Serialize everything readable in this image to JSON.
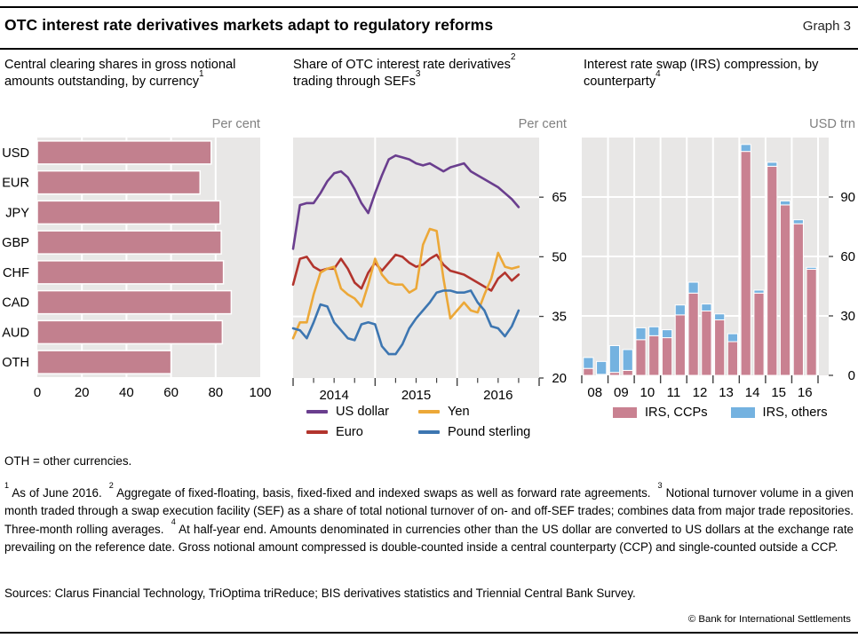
{
  "header": {
    "title": "OTC interest rate derivatives markets adapt to regulatory reforms",
    "graph_label": "Graph 3"
  },
  "colors": {
    "plot_bg": "#E8E7E6",
    "gridline": "#FFFFFF",
    "tick": "#404040",
    "unit_text": "#808080",
    "rule": "#000000"
  },
  "chart_data": [
    {
      "type": "bar",
      "orientation": "horizontal",
      "title": "Central clearing shares in gross notional amounts outstanding, by currency^1",
      "unit_label": "Per cent",
      "categories": [
        "USD",
        "EUR",
        "JPY",
        "GBP",
        "CHF",
        "CAD",
        "AUD",
        "OTH"
      ],
      "values": [
        78,
        73,
        82,
        82.5,
        83.5,
        87,
        83,
        60
      ],
      "xlim": [
        0,
        100
      ],
      "xticks": [
        0,
        20,
        40,
        60,
        80,
        100
      ],
      "bar_color": "#C2808E",
      "grid": "vertical white lines on grey background"
    },
    {
      "type": "line",
      "title": "Share of OTC interest rate derivatives^2 trading through SEFs^3",
      "unit_label": "Per cent",
      "x_start": "2014-01",
      "x_end": "2016-10",
      "x_freq": "monthly",
      "x_year_labels": [
        "2014",
        "2015",
        "2016"
      ],
      "ylim": [
        20,
        80
      ],
      "yticks": [
        20,
        35,
        50,
        65
      ],
      "legend_position": "below",
      "grid": "horizontal white lines on grey background",
      "series": [
        {
          "name": "US dollar",
          "color": "#6A3E8E",
          "values": [
            52,
            63,
            63.5,
            63.5,
            66,
            69,
            71,
            71.5,
            70,
            67,
            63.5,
            61,
            66,
            70.5,
            74.5,
            75.5,
            75,
            74.5,
            73.5,
            73,
            73.5,
            72.5,
            71.5,
            72.5,
            73,
            73.5,
            71.5,
            70.5,
            69.5,
            68.5,
            67.5,
            66,
            64.5,
            62.5
          ]
        },
        {
          "name": "Euro",
          "color": "#B2342D",
          "values": [
            43,
            49.5,
            50,
            47.5,
            46.5,
            47,
            47,
            49.5,
            47,
            43.5,
            42,
            46,
            48.5,
            46.5,
            48.5,
            50.5,
            50,
            48.5,
            47.5,
            48,
            49.5,
            50.5,
            48,
            46.5,
            46,
            45.5,
            44.5,
            43.5,
            42.5,
            41.5,
            44.5,
            46,
            44,
            45.5
          ]
        },
        {
          "name": "Yen",
          "color": "#ECA838",
          "values": [
            29.5,
            33.5,
            33.5,
            40.5,
            46,
            47,
            47.5,
            42,
            40.5,
            39.5,
            37.5,
            43,
            49.5,
            45.5,
            43.5,
            43,
            43,
            41,
            42,
            53,
            57,
            56.5,
            44.5,
            34.5,
            36.5,
            38.5,
            36.5,
            36,
            40.5,
            44.5,
            51,
            47.5,
            47,
            47.5
          ]
        },
        {
          "name": "Pound sterling",
          "color": "#3D76B1",
          "values": [
            32,
            31.5,
            29.5,
            33.5,
            38,
            37.5,
            33.5,
            31.5,
            29.5,
            29,
            33,
            33.5,
            33,
            27.5,
            25.5,
            25.5,
            28,
            32,
            34.5,
            36.5,
            38.5,
            41,
            41.5,
            41.5,
            41,
            41,
            41.5,
            38.5,
            36.5,
            32.5,
            32,
            30,
            32.5,
            36.5
          ]
        }
      ]
    },
    {
      "type": "stacked-bar",
      "title": "Interest rate swap (IRS) compression, by counterparty^4",
      "unit_label": "USD trn",
      "categories": [
        "2008 H1",
        "2008 H2",
        "2009 H1",
        "2009 H2",
        "2010 H1",
        "2010 H2",
        "2011 H1",
        "2011 H2",
        "2012 H1",
        "2012 H2",
        "2013 H1",
        "2013 H2",
        "2014 H1",
        "2014 H2",
        "2015 H1",
        "2015 H2",
        "2016 H1",
        "2016 H2"
      ],
      "x_tick_labels": [
        "08",
        "09",
        "10",
        "11",
        "12",
        "13",
        "14",
        "15",
        "16"
      ],
      "ylim": [
        0,
        120
      ],
      "yticks": [
        0,
        30,
        60,
        90
      ],
      "legend_position": "below",
      "grid": "horizontal and vertical white lines on grey background",
      "series": [
        {
          "name": "IRS, CCPs",
          "color": "#C98191",
          "values": [
            3.5,
            0.5,
            1.5,
            2.5,
            18,
            20,
            19,
            30.5,
            41.5,
            32.5,
            28,
            17,
            113,
            41.5,
            105.5,
            86,
            76.5,
            53.5
          ]
        },
        {
          "name": "IRS, others",
          "color": "#74B2E0",
          "values": [
            5.5,
            6.5,
            13.5,
            10.5,
            6,
            4.5,
            4,
            5,
            5.5,
            3.5,
            3,
            4,
            3.5,
            1.5,
            2,
            2,
            2,
            1
          ]
        }
      ]
    }
  ],
  "footnotes": {
    "oth": "OTH = other currencies.",
    "body": "^1 As of June 2016.  ^2 Aggregate of fixed-floating, basis, fixed-fixed and indexed swaps as well as forward rate agreements.  ^3 Notional turnover volume in a given month traded through a swap execution facility (SEF) as a share of total notional turnover of on- and off-SEF trades; combines data from major trade repositories. Three-month rolling averages.  ^4 At half-year end. Amounts denominated in currencies other than the US dollar are converted to US dollars at the exchange rate prevailing on the reference date. Gross notional amount compressed is double-counted inside a central counterparty (CCP) and single-counted outside a CCP.",
    "sources": "Sources: Clarus Financial Technology, TriOptima triReduce; BIS derivatives statistics and Triennial Central Bank Survey.",
    "copyright": "© Bank for International Settlements"
  }
}
